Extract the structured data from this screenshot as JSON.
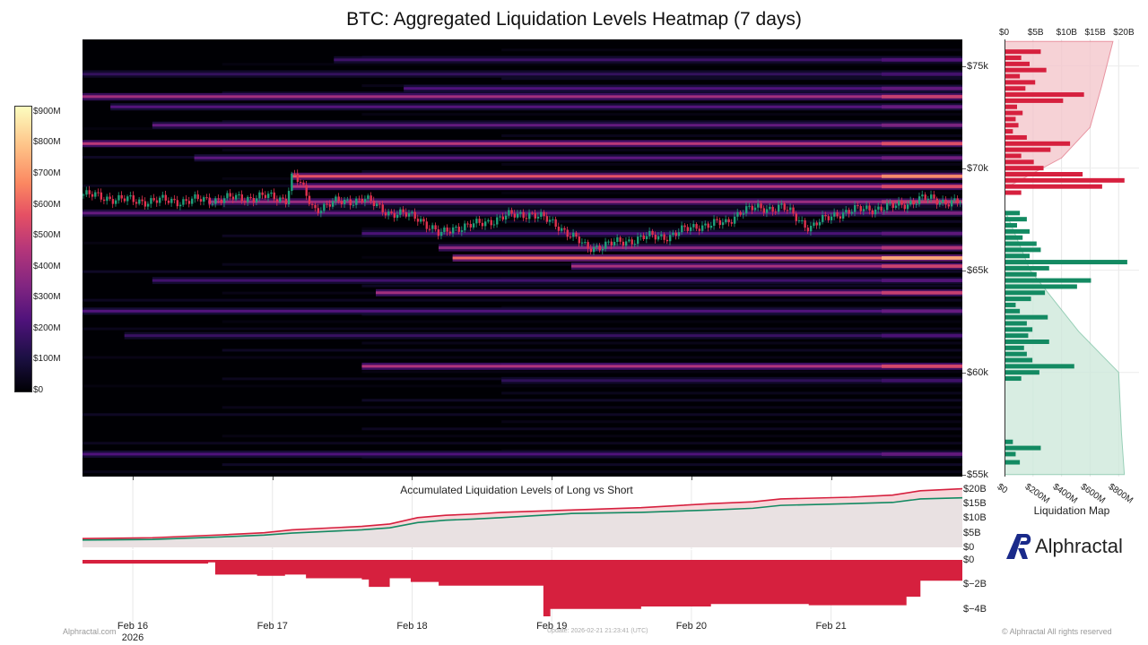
{
  "title": "BTC: Aggregated Liquidation Levels Heatmap (7 days)",
  "subtitle": "Accumulated Liquidation Levels of Long vs Short",
  "liquidation_map_label": "Liquidation Map",
  "brand": {
    "name": "Alphractal",
    "logo_icon": "alphractal-logo-icon"
  },
  "footer": {
    "left": "Alphractal.com",
    "update": "Update: 2026-02-21 21:23:41 (UTC)",
    "right": "© Alphractal All rights reserved"
  },
  "colors": {
    "short": "#d6203e",
    "long": "#138a62",
    "bg_heat": "#000004"
  },
  "chart_data": [
    {
      "type": "heatmap",
      "title": "BTC: Aggregated Liquidation Levels Heatmap (7 days)",
      "x_ticks": [
        "Feb 16",
        "Feb 17",
        "Feb 18",
        "Feb 19",
        "Feb 20",
        "Feb 21"
      ],
      "x_year_label": "2026",
      "y_ticks": [
        "$75k",
        "$70k",
        "$65k",
        "$60k",
        "$55k"
      ],
      "ylim": [
        54900,
        76300
      ],
      "colorbar": {
        "ticks": [
          "$900M",
          "$800M",
          "$700M",
          "$600M",
          "$500M",
          "$400M",
          "$300M",
          "$200M",
          "$100M",
          "$0"
        ],
        "range": [
          0,
          920
        ]
      },
      "price_path": {
        "t": [
          0,
          0.35,
          0.75,
          1.0,
          1.3,
          1.45,
          1.5,
          1.65,
          1.8,
          2.0,
          2.2,
          2.4,
          2.55,
          2.65,
          2.8,
          3.0,
          3.2,
          3.4,
          3.6,
          3.8,
          4.0,
          4.2,
          4.4,
          4.6,
          4.7,
          4.8,
          5.0,
          5.2,
          5.4,
          5.6,
          5.8,
          6.0,
          6.3
        ],
        "price": [
          68700,
          68400,
          68400,
          68500,
          68600,
          68500,
          69800,
          68000,
          68300,
          68500,
          67800,
          67600,
          66700,
          67100,
          67200,
          67600,
          67800,
          67200,
          66100,
          66300,
          66600,
          66700,
          67200,
          67300,
          67900,
          68000,
          68100,
          67100,
          67800,
          68000,
          68100,
          68500,
          68300
        ]
      },
      "bands": [
        {
          "price": 75300,
          "start": 1.8,
          "value": 190
        },
        {
          "price": 74600,
          "start": 0.0,
          "value": 170
        },
        {
          "price": 73900,
          "start": 2.3,
          "value": 230
        },
        {
          "price": 73500,
          "start": 0.0,
          "value": 420
        },
        {
          "price": 73000,
          "start": 0.2,
          "value": 240
        },
        {
          "price": 72100,
          "start": 0.5,
          "value": 280
        },
        {
          "price": 71200,
          "start": 0.0,
          "value": 470
        },
        {
          "price": 70500,
          "start": 0.8,
          "value": 260
        },
        {
          "price": 69600,
          "start": 1.5,
          "value": 580
        },
        {
          "price": 69100,
          "start": 1.5,
          "value": 460
        },
        {
          "price": 68350,
          "start": 0.9,
          "value": 400
        },
        {
          "price": 67800,
          "start": 0.0,
          "value": 280
        },
        {
          "price": 66800,
          "start": 2.0,
          "value": 220
        },
        {
          "price": 66100,
          "start": 2.55,
          "value": 380
        },
        {
          "price": 65600,
          "start": 2.65,
          "value": 620
        },
        {
          "price": 65200,
          "start": 3.5,
          "value": 430
        },
        {
          "price": 64500,
          "start": 0.5,
          "value": 200
        },
        {
          "price": 63900,
          "start": 2.1,
          "value": 420
        },
        {
          "price": 63000,
          "start": 0.0,
          "value": 240
        },
        {
          "price": 61800,
          "start": 0.3,
          "value": 180
        },
        {
          "price": 60300,
          "start": 2.0,
          "value": 450
        },
        {
          "price": 59600,
          "start": 3.0,
          "value": 160
        },
        {
          "price": 56000,
          "start": 0.0,
          "value": 230
        }
      ]
    },
    {
      "type": "bar",
      "title": "Liquidation Map",
      "orientation": "horizontal",
      "x_ticks_top": [
        "$0",
        "$5B",
        "$10B",
        "$15B",
        "$20B"
      ],
      "x_ticks_bottom": [
        "$0",
        "$200M",
        "$400M",
        "$600M",
        "$800M"
      ],
      "xlim_bottom": [
        0,
        900
      ],
      "xlim_top": [
        0,
        22
      ],
      "short_levels": {
        "price": [
          75700,
          75400,
          75100,
          74800,
          74500,
          74200,
          73900,
          73600,
          73300,
          73000,
          72700,
          72400,
          72100,
          71800,
          71500,
          71200,
          70900,
          70600,
          70300,
          70000,
          69700,
          69400,
          69100,
          68800
        ],
        "value": [
          260,
          120,
          180,
          300,
          110,
          220,
          150,
          570,
          420,
          90,
          130,
          80,
          100,
          60,
          160,
          470,
          330,
          120,
          210,
          280,
          560,
          860,
          700,
          120
        ]
      },
      "long_levels": {
        "price": [
          67800,
          67500,
          67200,
          66900,
          66600,
          66300,
          66000,
          65700,
          65400,
          65100,
          64800,
          64500,
          64200,
          63900,
          63600,
          63300,
          63000,
          62700,
          62400,
          62100,
          61800,
          61500,
          61200,
          60900,
          60600,
          60300,
          60000,
          59700,
          56600,
          56300,
          56000,
          55600
        ],
        "value": [
          110,
          160,
          90,
          180,
          130,
          230,
          260,
          180,
          880,
          320,
          230,
          620,
          520,
          290,
          190,
          80,
          110,
          310,
          160,
          200,
          170,
          320,
          140,
          160,
          200,
          500,
          250,
          120,
          60,
          260,
          80,
          110
        ]
      },
      "cumulative_short": {
        "price": [
          76200,
          74000,
          72000,
          70500,
          69000
        ],
        "value": [
          19,
          17,
          15,
          10,
          0
        ]
      },
      "cumulative_long": {
        "price": [
          68000,
          65000,
          62000,
          60000,
          57000,
          55000
        ],
        "value": [
          0,
          4.5,
          13,
          20,
          20.5,
          21
        ]
      }
    },
    {
      "type": "line",
      "title": "Accumulated Liquidation Levels of Long vs Short",
      "y_ticks": [
        "$20B",
        "$15B",
        "$10B",
        "$5B",
        "$0"
      ],
      "ylim": [
        0,
        21.5
      ],
      "x": [
        0,
        0.5,
        1.0,
        1.3,
        1.5,
        2.0,
        2.2,
        2.4,
        2.6,
        2.8,
        3.0,
        3.5,
        4.0,
        4.5,
        4.8,
        5.0,
        5.5,
        5.8,
        6.0,
        6.3
      ],
      "series": [
        {
          "name": "Short",
          "values": [
            3.0,
            3.3,
            4.3,
            5.0,
            6.0,
            7.2,
            8.0,
            10.2,
            11.0,
            11.4,
            12.0,
            12.8,
            13.6,
            15.0,
            15.6,
            16.6,
            17.2,
            17.9,
            19.4,
            20.1
          ]
        },
        {
          "name": "Long",
          "values": [
            2.5,
            2.7,
            3.6,
            4.2,
            4.9,
            6.0,
            6.7,
            8.5,
            9.3,
            9.7,
            10.2,
            11.6,
            12.0,
            12.8,
            13.4,
            14.4,
            15.0,
            15.4,
            16.6,
            17.0
          ]
        }
      ]
    },
    {
      "type": "area",
      "y_ticks": [
        "$0",
        "$−2B",
        "$−4B"
      ],
      "ylim": [
        -4.6,
        0
      ],
      "x": [
        0,
        0.9,
        0.95,
        1.25,
        1.45,
        1.6,
        2.0,
        2.05,
        2.2,
        2.35,
        2.55,
        3.3,
        3.35,
        4.0,
        4.5,
        5.2,
        5.9,
        6.0,
        6.3
      ],
      "values": [
        -0.3,
        -0.2,
        -1.2,
        -1.3,
        -1.2,
        -1.5,
        -1.6,
        -2.2,
        -1.5,
        -1.8,
        -2.1,
        -4.6,
        -4.0,
        -3.8,
        -3.6,
        -3.7,
        -3.0,
        -1.7,
        -1.7
      ]
    }
  ]
}
